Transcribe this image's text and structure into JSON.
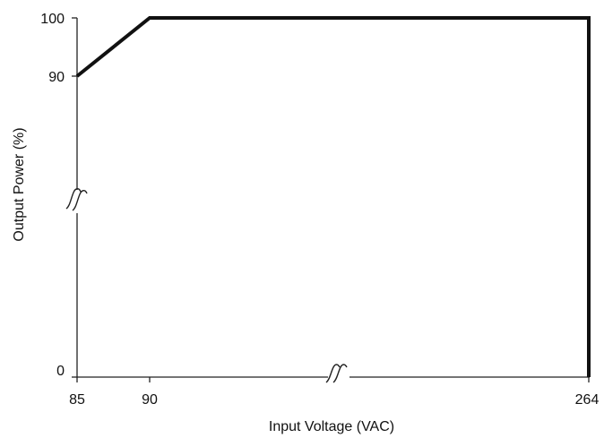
{
  "chart_data": {
    "type": "line",
    "xlabel": "Input Voltage (VAC)",
    "ylabel": "Output Power (%)",
    "x_ticks": [
      85,
      90,
      264
    ],
    "y_ticks": [
      0,
      90,
      100
    ],
    "axis_breaks": {
      "x": true,
      "y": true
    },
    "grid": false,
    "legend": "none",
    "series": [
      {
        "color": "#111111",
        "points": [
          {
            "x": 85,
            "y": 90
          },
          {
            "x": 90,
            "y": 100
          },
          {
            "x": 264,
            "y": 100
          },
          {
            "x": 264,
            "y": 0
          }
        ]
      }
    ],
    "colors": {
      "line": "#111111",
      "axis": "#222222"
    }
  }
}
